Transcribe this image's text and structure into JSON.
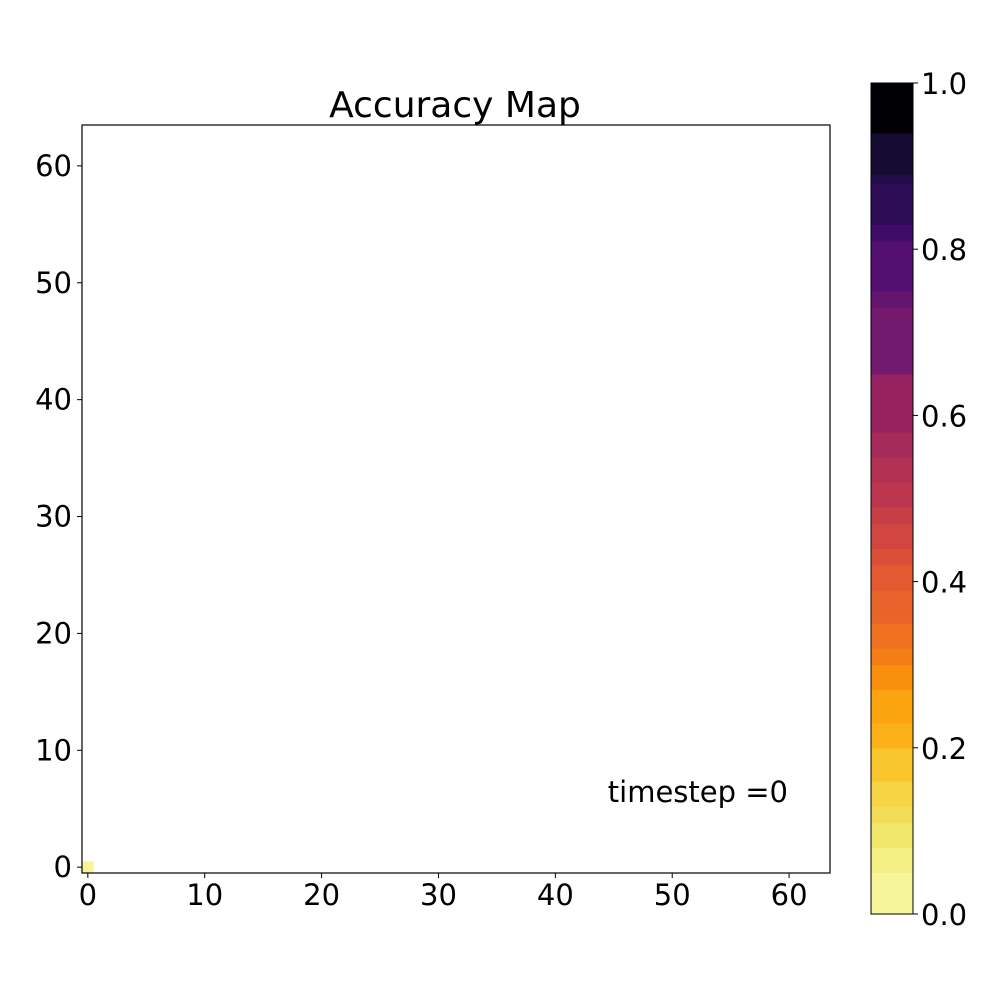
{
  "chart_data": {
    "type": "heatmap",
    "title": "Accuracy Map",
    "xlabel": "",
    "ylabel": "",
    "xlim": [
      -0.5,
      63.5
    ],
    "ylim": [
      -0.5,
      63.5
    ],
    "x_ticks": [
      0,
      10,
      20,
      30,
      40,
      50,
      60
    ],
    "y_ticks": [
      0,
      10,
      20,
      30,
      40,
      50,
      60
    ],
    "x_tick_labels": [
      "0",
      "10",
      "20",
      "30",
      "40",
      "50",
      "60"
    ],
    "y_tick_labels": [
      "0",
      "10",
      "20",
      "30",
      "40",
      "50",
      "60"
    ],
    "cells": [
      {
        "x": 0,
        "y": 0,
        "value": 0.0
      }
    ],
    "annotation": "timestep =0",
    "grid": false,
    "colormap": "inferno_r",
    "colorbar": {
      "range": [
        0.0,
        1.0
      ],
      "ticks": [
        0.0,
        0.2,
        0.4,
        0.6,
        0.8,
        1.0
      ],
      "tick_labels": [
        "0.0",
        "0.2",
        "0.4",
        "0.6",
        "0.8",
        "1.0"
      ],
      "bands": [
        {
          "from": 0.0,
          "to": 0.05,
          "color": "#f6f59a"
        },
        {
          "from": 0.05,
          "to": 0.08,
          "color": "#f3ef82"
        },
        {
          "from": 0.08,
          "to": 0.11,
          "color": "#f1e76b"
        },
        {
          "from": 0.11,
          "to": 0.13,
          "color": "#f2de56"
        },
        {
          "from": 0.13,
          "to": 0.16,
          "color": "#f6d443"
        },
        {
          "from": 0.16,
          "to": 0.2,
          "color": "#f9c52c"
        },
        {
          "from": 0.2,
          "to": 0.23,
          "color": "#fbb21a"
        },
        {
          "from": 0.23,
          "to": 0.27,
          "color": "#fca40f"
        },
        {
          "from": 0.27,
          "to": 0.3,
          "color": "#f98f0c"
        },
        {
          "from": 0.3,
          "to": 0.32,
          "color": "#f57d15"
        },
        {
          "from": 0.32,
          "to": 0.35,
          "color": "#ef7121"
        },
        {
          "from": 0.35,
          "to": 0.39,
          "color": "#e8642a"
        },
        {
          "from": 0.39,
          "to": 0.42,
          "color": "#e35932"
        },
        {
          "from": 0.42,
          "to": 0.44,
          "color": "#db4f39"
        },
        {
          "from": 0.44,
          "to": 0.47,
          "color": "#d14640"
        },
        {
          "from": 0.47,
          "to": 0.49,
          "color": "#c73e47"
        },
        {
          "from": 0.49,
          "to": 0.52,
          "color": "#bc374d"
        },
        {
          "from": 0.52,
          "to": 0.55,
          "color": "#b23253"
        },
        {
          "from": 0.55,
          "to": 0.58,
          "color": "#a52b5b"
        },
        {
          "from": 0.58,
          "to": 0.65,
          "color": "#962261"
        },
        {
          "from": 0.65,
          "to": 0.73,
          "color": "#741a6e"
        },
        {
          "from": 0.73,
          "to": 0.75,
          "color": "#66156e"
        },
        {
          "from": 0.75,
          "to": 0.81,
          "color": "#531070"
        },
        {
          "from": 0.81,
          "to": 0.83,
          "color": "#410b68"
        },
        {
          "from": 0.83,
          "to": 0.88,
          "color": "#2c0c55"
        },
        {
          "from": 0.88,
          "to": 0.89,
          "color": "#1f0c48"
        },
        {
          "from": 0.89,
          "to": 0.94,
          "color": "#150b33"
        },
        {
          "from": 0.94,
          "to": 1.0,
          "color": "#000004"
        }
      ]
    }
  }
}
